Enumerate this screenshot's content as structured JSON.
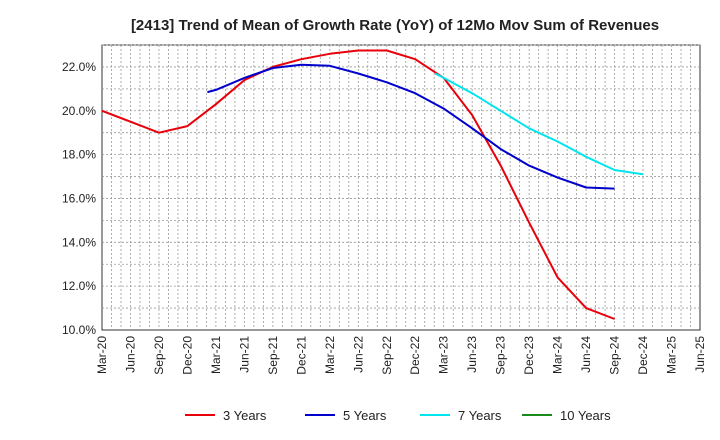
{
  "chart_data": {
    "type": "line",
    "title": "[2413]  Trend of Mean of Growth Rate (YoY) of 12Mo Mov Sum of Revenues",
    "xlabel": "",
    "ylabel": "",
    "x_ticks": [
      "Mar-20",
      "Jun-20",
      "Sep-20",
      "Dec-20",
      "Mar-21",
      "Jun-21",
      "Sep-21",
      "Dec-21",
      "Mar-22",
      "Jun-22",
      "Sep-22",
      "Dec-22",
      "Mar-23",
      "Jun-23",
      "Sep-23",
      "Dec-23",
      "Mar-24",
      "Jun-24",
      "Sep-24",
      "Dec-24",
      "Mar-25",
      "Jun-25"
    ],
    "y_ticks": [
      "10.0%",
      "12.0%",
      "14.0%",
      "16.0%",
      "18.0%",
      "20.0%",
      "22.0%"
    ],
    "ylim": [
      10,
      23
    ],
    "grid": true,
    "series": [
      {
        "name": "3 Years",
        "color": "#e8000b",
        "points": [
          [
            0,
            20.0
          ],
          [
            1,
            19.5
          ],
          [
            2,
            19.0
          ],
          [
            3,
            19.3
          ],
          [
            4,
            20.3
          ],
          [
            5,
            21.4
          ],
          [
            6,
            22.0
          ],
          [
            7,
            22.35
          ],
          [
            8,
            22.6
          ],
          [
            9,
            22.75
          ],
          [
            10,
            22.75
          ],
          [
            11,
            22.35
          ],
          [
            12,
            21.5
          ],
          [
            13,
            19.8
          ],
          [
            14,
            17.5
          ],
          [
            15,
            14.9
          ],
          [
            16,
            12.4
          ],
          [
            17,
            11.0
          ],
          [
            18,
            10.5
          ]
        ]
      },
      {
        "name": "5 Years",
        "color": "#0000cc",
        "points": [
          [
            3.7,
            20.85
          ],
          [
            4,
            20.95
          ],
          [
            5,
            21.5
          ],
          [
            6,
            21.95
          ],
          [
            7,
            22.1
          ],
          [
            8,
            22.05
          ],
          [
            9,
            21.7
          ],
          [
            10,
            21.3
          ],
          [
            11,
            20.8
          ],
          [
            12,
            20.1
          ],
          [
            13,
            19.2
          ],
          [
            14,
            18.25
          ],
          [
            15,
            17.5
          ],
          [
            16,
            16.95
          ],
          [
            17,
            16.5
          ],
          [
            18,
            16.45
          ]
        ]
      },
      {
        "name": "7 Years",
        "color": "#00e5ee",
        "points": [
          [
            11.7,
            21.7
          ],
          [
            12,
            21.5
          ],
          [
            13,
            20.8
          ],
          [
            14,
            20.0
          ],
          [
            15,
            19.2
          ],
          [
            16,
            18.6
          ],
          [
            17,
            17.9
          ],
          [
            18,
            17.3
          ],
          [
            19,
            17.1
          ]
        ]
      },
      {
        "name": "10 Years",
        "color": "#1a8a1a",
        "points": []
      }
    ]
  }
}
